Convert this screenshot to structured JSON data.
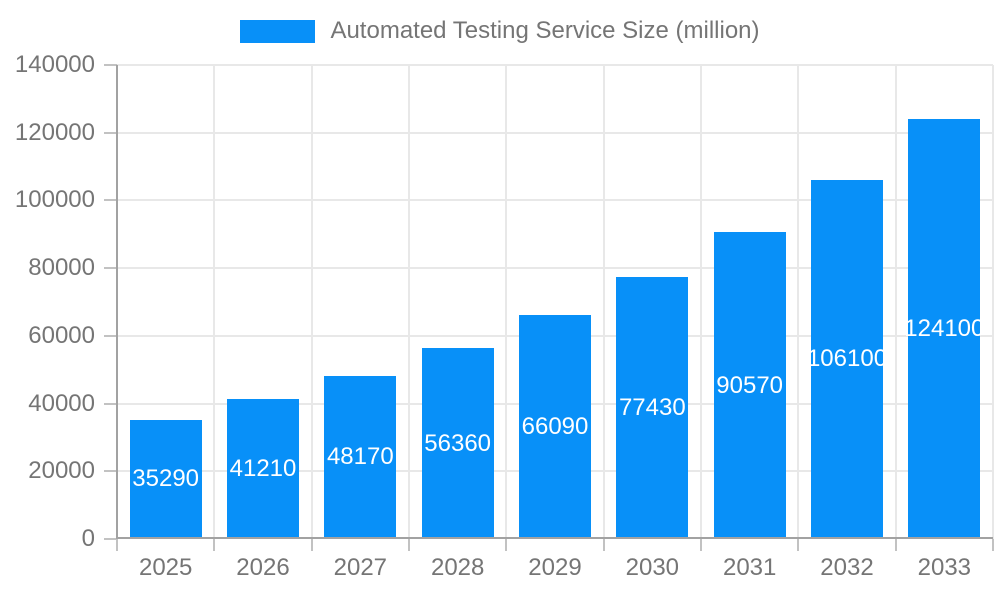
{
  "legend": {
    "label": "Automated Testing Service Size (million)",
    "swatch_color": "#0890F8"
  },
  "chart_data": {
    "type": "bar",
    "title": "",
    "categories": [
      "2025",
      "2026",
      "2027",
      "2028",
      "2029",
      "2030",
      "2031",
      "2032",
      "2033"
    ],
    "series": [
      {
        "name": "Automated Testing Service Size (million)",
        "values": [
          35290,
          41210,
          48170,
          56360,
          66090,
          77430,
          90570,
          106100,
          124100
        ],
        "color": "#0890F8"
      }
    ],
    "xlabel": "",
    "ylabel": "",
    "ylim": [
      0,
      140000
    ],
    "ytick_step": 20000,
    "yticks": [
      0,
      20000,
      40000,
      60000,
      80000,
      100000,
      120000,
      140000
    ],
    "grid": true,
    "legend_position": "top-center",
    "value_label_position": "inside-center"
  },
  "colors": {
    "bar": "#0890F8",
    "axis_text": "#757575",
    "grid_line": "#E8E8E8",
    "axis_line": "#A2A2A2",
    "tick_line": "#C2C2C2",
    "value_label": "#FFFFFF",
    "background": "#FFFFFF"
  }
}
